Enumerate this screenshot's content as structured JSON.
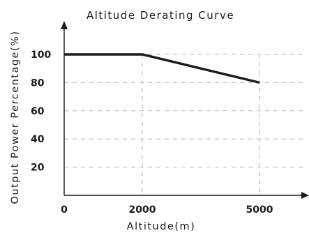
{
  "chart_data": {
    "type": "line",
    "title": "Altitude Derating Curve",
    "xlabel": "Altitude(m)",
    "ylabel": "Output Power Percentage(%)",
    "x_ticks": [
      "0",
      "2000",
      "5000"
    ],
    "y_ticks": [
      "20",
      "40",
      "60",
      "80",
      "100"
    ],
    "x_tick_values": [
      0,
      2000,
      5000
    ],
    "y_tick_values": [
      20,
      40,
      60,
      80,
      100
    ],
    "xlim": [
      0,
      5000
    ],
    "ylim": [
      0,
      100
    ],
    "grid": true,
    "series": [
      {
        "x": [
          0,
          2000,
          5000
        ],
        "y": [
          100,
          100,
          80
        ]
      }
    ],
    "colors": {
      "line": "#1a1a1a",
      "grid": "#b5b5b5",
      "axis": "#1a1a1a"
    }
  }
}
